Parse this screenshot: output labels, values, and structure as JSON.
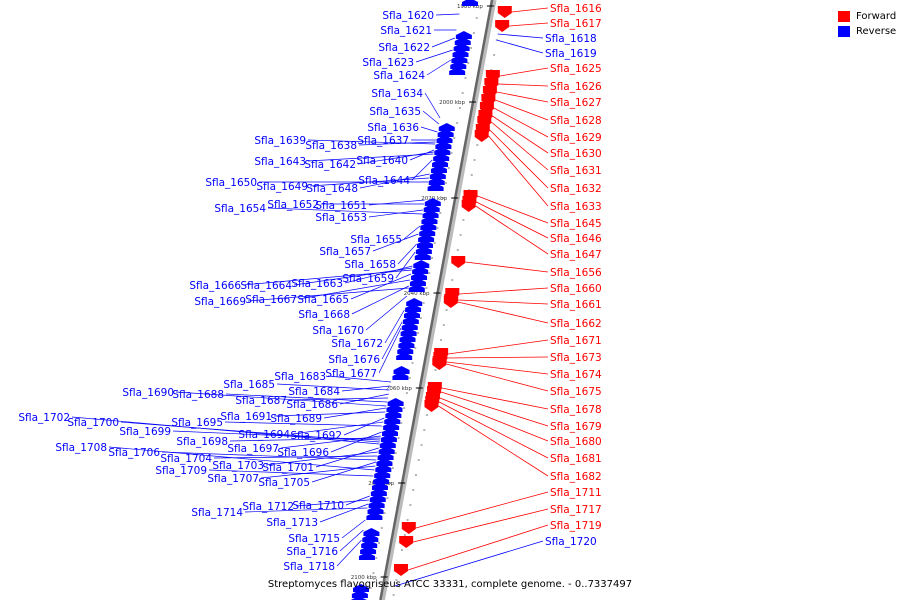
{
  "caption": "Streptomyces flavogriseus ATCC 33331, complete genome. - 0..7337497",
  "legend": [
    {
      "label": "Forward",
      "color": "#ff0000"
    },
    {
      "label": "Reverse",
      "color": "#0000ff"
    }
  ],
  "colors": {
    "forward": "#ff0000",
    "reverse": "#0000ff",
    "backbone": "#666666"
  },
  "ticks": [
    "1980 kbp",
    "2000 kbp",
    "2020 kbp",
    "2040 kbp",
    "2060 kbp",
    "2080 kbp",
    "2100 kbp"
  ],
  "forward_labels": [
    "Sfla_1616",
    "Sfla_1617",
    "Sfla_1625",
    "Sfla_1626",
    "Sfla_1627",
    "Sfla_1628",
    "Sfla_1629",
    "Sfla_1630",
    "Sfla_1631",
    "Sfla_1632",
    "Sfla_1633",
    "Sfla_1645",
    "Sfla_1646",
    "Sfla_1647",
    "Sfla_1656",
    "Sfla_1660",
    "Sfla_1661",
    "Sfla_1662",
    "Sfla_1671",
    "Sfla_1673",
    "Sfla_1674",
    "Sfla_1675",
    "Sfla_1678",
    "Sfla_1679",
    "Sfla_1680",
    "Sfla_1681",
    "Sfla_1682",
    "Sfla_1711",
    "Sfla_1717",
    "Sfla_1719"
  ],
  "reverse_right_labels": [
    "Sfla_1618",
    "Sfla_1619",
    "Sfla_1720"
  ],
  "reverse_labels": [
    "Sfla_1620",
    "Sfla_1621",
    "Sfla_1622",
    "Sfla_1623",
    "Sfla_1624",
    "Sfla_1634",
    "Sfla_1635",
    "Sfla_1636",
    "Sfla_1637",
    "Sfla_1638",
    "Sfla_1639",
    "Sfla_1640",
    "Sfla_1642",
    "Sfla_1643",
    "Sfla_1644",
    "Sfla_1648",
    "Sfla_1649",
    "Sfla_1650",
    "Sfla_1651",
    "Sfla_1652",
    "Sfla_1653",
    "Sfla_1654",
    "Sfla_1655",
    "Sfla_1657",
    "Sfla_1658",
    "Sfla_1659",
    "Sfla_1663",
    "Sfla_1664",
    "Sfla_1665",
    "Sfla_1666",
    "Sfla_1667",
    "Sfla_1668",
    "Sfla_1669",
    "Sfla_1670",
    "Sfla_1672",
    "Sfla_1676",
    "Sfla_1677",
    "Sfla_1683",
    "Sfla_1684",
    "Sfla_1685",
    "Sfla_1686",
    "Sfla_1687",
    "Sfla_1688",
    "Sfla_1689",
    "Sfla_1690",
    "Sfla_1691",
    "Sfla_1692",
    "Sfla_1694",
    "Sfla_1695",
    "Sfla_1696",
    "Sfla_1697",
    "Sfla_1698",
    "Sfla_1699",
    "Sfla_1700",
    "Sfla_1701",
    "Sfla_1702",
    "Sfla_1703",
    "Sfla_1704",
    "Sfla_1705",
    "Sfla_1706",
    "Sfla_1707",
    "Sfla_1708",
    "Sfla_1709",
    "Sfla_1710",
    "Sfla_1712",
    "Sfla_1713",
    "Sfla_1714",
    "Sfla_1715",
    "Sfla_1716",
    "Sfla_1718"
  ]
}
